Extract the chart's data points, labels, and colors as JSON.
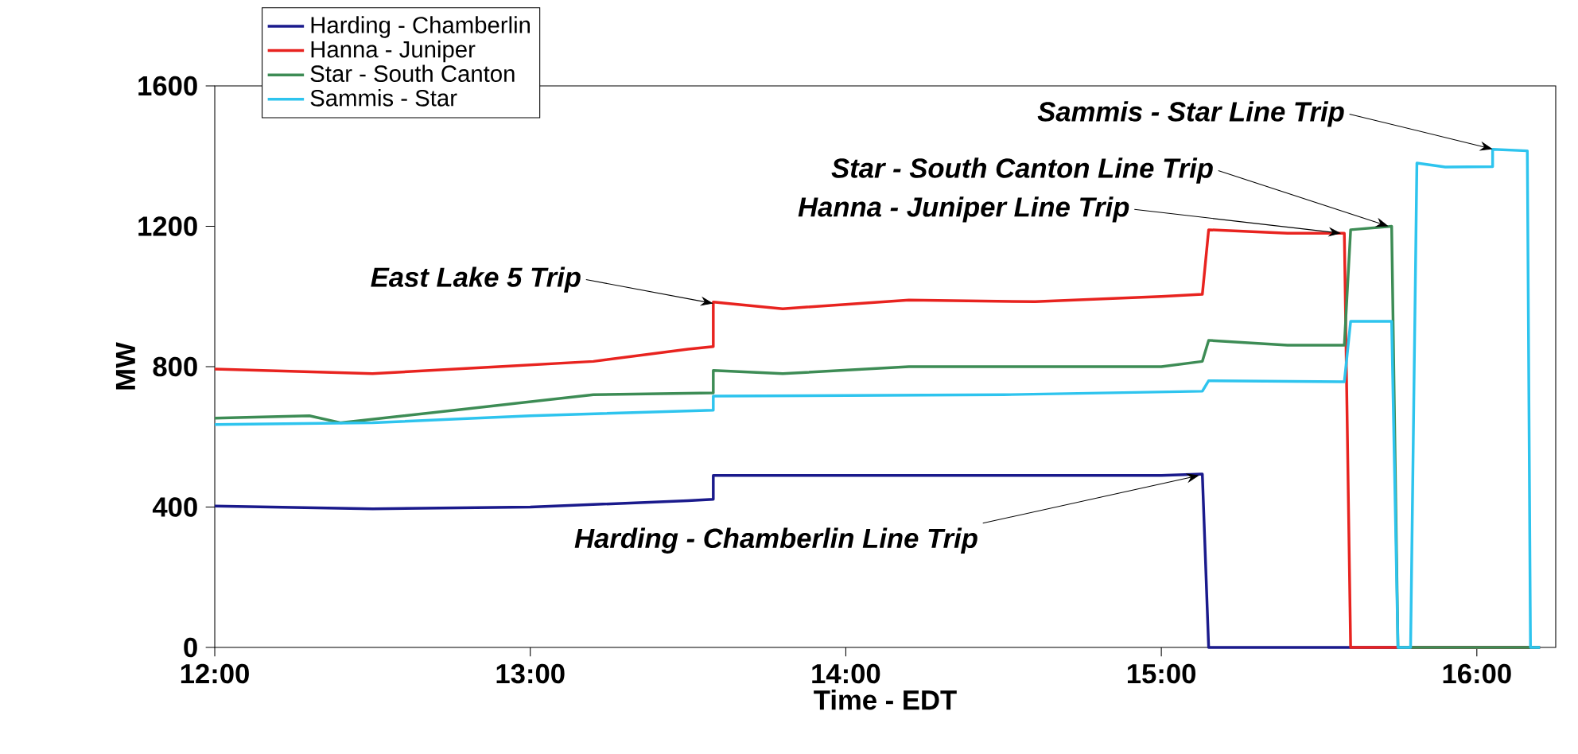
{
  "chart_data": {
    "type": "line",
    "xlabel": "Time - EDT",
    "ylabel": "MW",
    "xlim": [
      12,
      16.25
    ],
    "ylim": [
      0,
      1600
    ],
    "xticks": [
      {
        "value": 12,
        "label": "12:00"
      },
      {
        "value": 13,
        "label": "13:00"
      },
      {
        "value": 14,
        "label": "14:00"
      },
      {
        "value": 15,
        "label": "15:00"
      },
      {
        "value": 16,
        "label": "16:00"
      }
    ],
    "yticks": [
      0,
      400,
      800,
      1200,
      1600
    ],
    "legend": "top left",
    "marker": "none",
    "series": [
      {
        "name": "Harding - Chamberlin",
        "color": "#1a1a8c",
        "x": [
          12,
          12.5,
          13.0,
          13.5,
          13.58,
          13.58,
          14.0,
          14.5,
          15.0,
          15.13,
          15.15,
          16.2
        ],
        "values": [
          403,
          395,
          400,
          418,
          422,
          490,
          490,
          490,
          490,
          494,
          0,
          0
        ]
      },
      {
        "name": "Hanna - Juniper",
        "color": "#e8231f",
        "x": [
          12,
          12.5,
          12.9,
          13.2,
          13.5,
          13.58,
          13.58,
          13.8,
          14.2,
          14.6,
          15.0,
          15.13,
          15.15,
          15.4,
          15.58,
          15.6,
          16.2
        ],
        "values": [
          793,
          780,
          800,
          815,
          850,
          857,
          984,
          965,
          990,
          985,
          1000,
          1006,
          1190,
          1180,
          1180,
          0,
          0
        ]
      },
      {
        "name": "Star - South Canton",
        "color": "#3d8c55",
        "x": [
          12,
          12.3,
          12.4,
          12.8,
          13.2,
          13.58,
          13.58,
          13.8,
          14.2,
          15.0,
          15.13,
          15.15,
          15.4,
          15.58,
          15.6,
          15.73,
          15.75,
          16.2
        ],
        "values": [
          653,
          660,
          640,
          680,
          720,
          725,
          789,
          780,
          800,
          800,
          815,
          875,
          861,
          861,
          1190,
          1200,
          0,
          0
        ]
      },
      {
        "name": "Sammis - Star",
        "color": "#2ec4ee",
        "x": [
          12,
          12.5,
          13.0,
          13.58,
          13.58,
          14.5,
          15.13,
          15.15,
          15.58,
          15.6,
          15.73,
          15.75,
          15.79,
          15.81,
          15.9,
          16.05,
          16.05,
          16.16,
          16.17,
          16.2
        ],
        "values": [
          635,
          640,
          660,
          676,
          716,
          720,
          730,
          760,
          757,
          929,
          929,
          0,
          0,
          1380,
          1369,
          1370,
          1419,
          1415,
          0,
          0
        ]
      }
    ],
    "annotations": [
      {
        "text": "East Lake 5 Trip",
        "x": 13.58,
        "y": 980
      },
      {
        "text": "Harding - Chamberlin Line Trip",
        "x": 15.12,
        "y": 490
      },
      {
        "text": "Hanna - Juniper Line Trip",
        "x": 15.57,
        "y": 1180
      },
      {
        "text": "Star - South Canton Line Trip",
        "x": 15.72,
        "y": 1200
      },
      {
        "text": "Sammis - Star Line Trip",
        "x": 16.05,
        "y": 1420
      }
    ]
  }
}
